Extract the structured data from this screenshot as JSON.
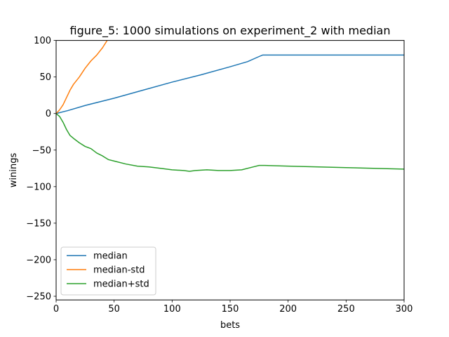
{
  "chart_data": {
    "type": "line",
    "title": "figure_5: 1000 simulations on experiment_2 with median",
    "xlabel": "bets",
    "ylabel": "winings",
    "xlim": [
      0,
      300
    ],
    "ylim": [
      -255,
      100
    ],
    "xticks": [
      0,
      50,
      100,
      150,
      200,
      250,
      300
    ],
    "yticks": [
      100,
      50,
      0,
      -50,
      -100,
      -150,
      -200,
      -250
    ],
    "xtick_labels": [
      "0",
      "50",
      "100",
      "150",
      "200",
      "250",
      "300"
    ],
    "ytick_labels": [
      "100",
      "50",
      "0",
      "−50",
      "−100",
      "−150",
      "−200",
      "−250"
    ],
    "grid": false,
    "legend_position": "lower-left",
    "series": [
      {
        "name": "median",
        "color": "#1f77b4",
        "x": [
          0,
          10,
          25,
          50,
          75,
          100,
          125,
          150,
          165,
          175,
          178,
          200,
          250,
          300
        ],
        "y": [
          0,
          4,
          11,
          21,
          32,
          43,
          53,
          64,
          71,
          78,
          80,
          80,
          80,
          80
        ]
      },
      {
        "name": "median-std",
        "color": "#ff7f0e",
        "x": [
          0,
          3,
          6,
          9,
          12,
          15,
          20,
          25,
          30,
          35,
          40,
          44
        ],
        "y": [
          0,
          5,
          12,
          22,
          32,
          40,
          50,
          62,
          72,
          80,
          90,
          100
        ]
      },
      {
        "name": "median+std",
        "color": "#2ca02c",
        "x": [
          0,
          3,
          6,
          9,
          12,
          15,
          20,
          25,
          30,
          35,
          40,
          45,
          50,
          60,
          70,
          80,
          90,
          100,
          110,
          115,
          120,
          130,
          140,
          150,
          160,
          170,
          175,
          180,
          200,
          250,
          300
        ],
        "y": [
          0,
          -4,
          -12,
          -22,
          -30,
          -34,
          -40,
          -45,
          -48,
          -54,
          -58,
          -63,
          -65,
          -69,
          -72,
          -73,
          -75,
          -77,
          -78,
          -79,
          -78,
          -77,
          -78,
          -78,
          -77,
          -73,
          -71,
          -71,
          -72,
          -74,
          -76
        ]
      }
    ]
  }
}
